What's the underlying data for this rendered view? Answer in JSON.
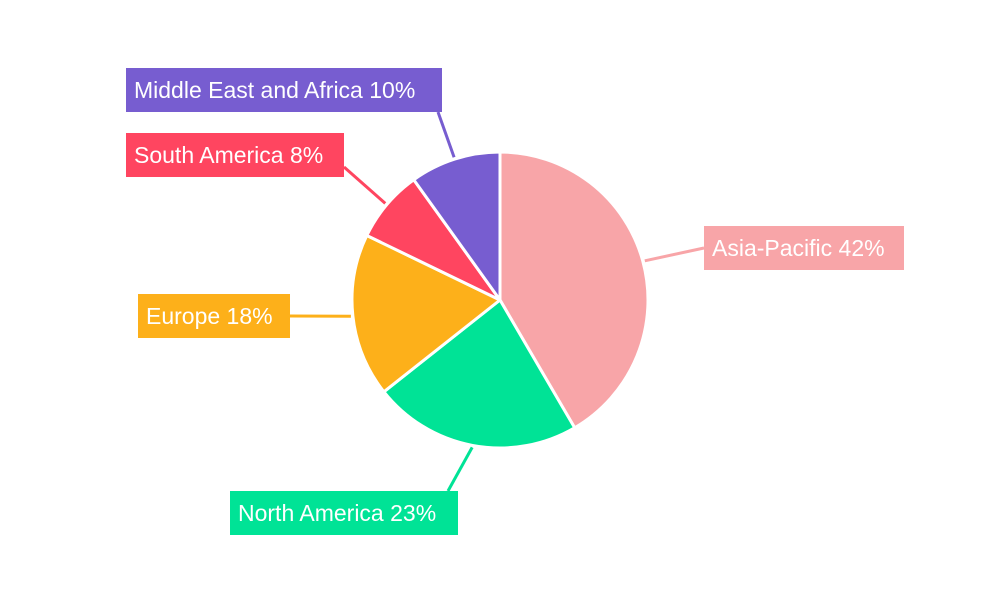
{
  "chart_data": {
    "type": "pie",
    "title": "",
    "slices": [
      {
        "label": "Asia-Pacific",
        "value": 42,
        "text": "Asia-Pacific 42%",
        "color": "#F8A5A8"
      },
      {
        "label": "North America",
        "value": 23,
        "text": "North America 23%",
        "color": "#00E396"
      },
      {
        "label": "Europe",
        "value": 18,
        "text": "Europe 18%",
        "color": "#FDB01A"
      },
      {
        "label": "South America",
        "value": 8,
        "text": "South America 8%",
        "color": "#FF4560"
      },
      {
        "label": "Middle East and Africa",
        "value": 10,
        "text": "Middle East and Africa 10%",
        "color": "#775DD0"
      }
    ],
    "legend": "none",
    "labels": "outside callouts"
  }
}
